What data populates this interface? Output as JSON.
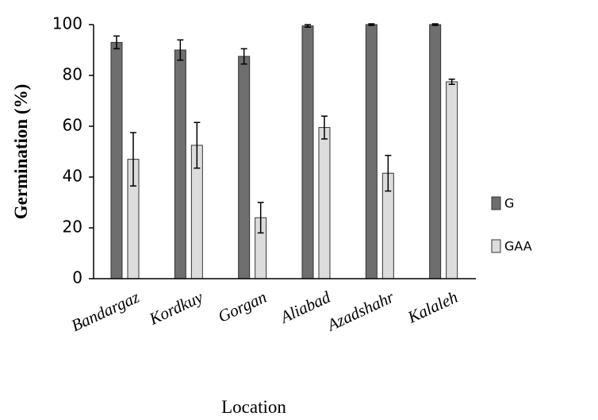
{
  "chart_data": {
    "type": "bar",
    "x_label": "Location",
    "y_label": "Germination (%)",
    "categories": [
      "Bandargaz",
      "Kordkuy",
      "Gorgan",
      "Aliabad",
      "Azadshahr",
      "Kalaleh"
    ],
    "series": [
      {
        "name": "G",
        "color": "#6e6e6e",
        "values": [
          93,
          90,
          87.5,
          99.5,
          100,
          100
        ],
        "errors": [
          2.5,
          4,
          3,
          0.5,
          0.3,
          0.3
        ]
      },
      {
        "name": "GAA",
        "color": "#dcdcdc",
        "values": [
          47,
          52.5,
          24,
          59.5,
          41.5,
          77.5
        ],
        "errors": [
          10.5,
          9,
          6,
          4.5,
          7,
          1
        ]
      }
    ],
    "ylim": [
      0,
      100
    ],
    "yticks": [
      0,
      20,
      40,
      60,
      80,
      100
    ],
    "grid": false,
    "legend": "right"
  }
}
